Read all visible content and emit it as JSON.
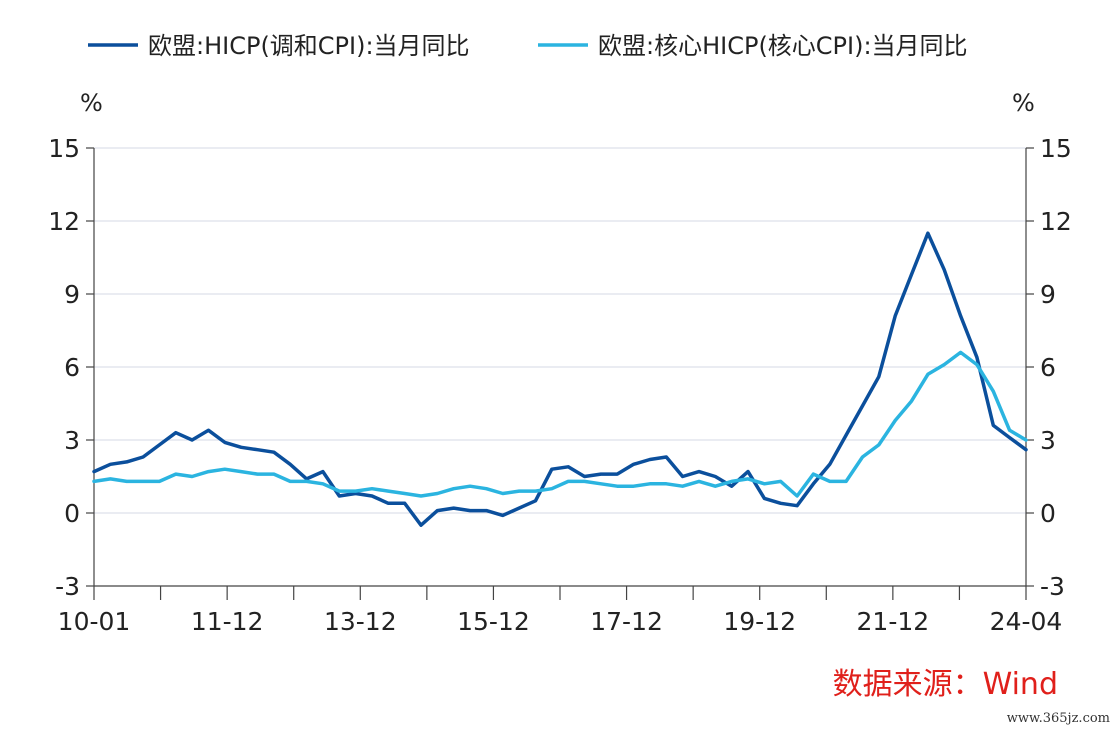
{
  "chart_data": {
    "type": "line",
    "x": [
      "2010-01",
      "2010-04",
      "2010-07",
      "2010-10",
      "2011-01",
      "2011-04",
      "2011-07",
      "2011-10",
      "2012-01",
      "2012-04",
      "2012-07",
      "2012-10",
      "2013-01",
      "2013-04",
      "2013-07",
      "2013-10",
      "2014-01",
      "2014-04",
      "2014-07",
      "2014-10",
      "2015-01",
      "2015-04",
      "2015-07",
      "2015-10",
      "2016-01",
      "2016-04",
      "2016-07",
      "2016-10",
      "2017-01",
      "2017-04",
      "2017-07",
      "2017-10",
      "2018-01",
      "2018-04",
      "2018-07",
      "2018-10",
      "2019-01",
      "2019-04",
      "2019-07",
      "2019-10",
      "2020-01",
      "2020-04",
      "2020-07",
      "2020-10",
      "2021-01",
      "2021-04",
      "2021-07",
      "2021-10",
      "2022-01",
      "2022-04",
      "2022-07",
      "2022-10",
      "2023-01",
      "2023-04",
      "2023-07",
      "2023-10",
      "2024-01",
      "2024-04"
    ],
    "series": [
      {
        "name": "欧盟:HICP(调和CPI):当月同比",
        "color": "#0b4f9c",
        "values": [
          1.7,
          2.0,
          2.1,
          2.3,
          2.8,
          3.3,
          3.0,
          3.4,
          2.9,
          2.7,
          2.6,
          2.5,
          2.0,
          1.4,
          1.7,
          0.7,
          0.8,
          0.7,
          0.4,
          0.4,
          -0.5,
          0.1,
          0.2,
          0.1,
          0.1,
          -0.1,
          0.2,
          0.5,
          1.8,
          1.9,
          1.5,
          1.6,
          1.6,
          2.0,
          2.2,
          2.3,
          1.5,
          1.7,
          1.5,
          1.1,
          1.7,
          0.6,
          0.4,
          0.3,
          1.2,
          2.0,
          3.2,
          4.4,
          5.6,
          8.1,
          9.8,
          11.5,
          10.0,
          8.1,
          6.4,
          3.6,
          3.1,
          2.6
        ]
      },
      {
        "name": "欧盟:核心HICP(核心CPI):当月同比",
        "color": "#2bb4e0",
        "values": [
          1.3,
          1.4,
          1.3,
          1.3,
          1.3,
          1.6,
          1.5,
          1.7,
          1.8,
          1.7,
          1.6,
          1.6,
          1.3,
          1.3,
          1.2,
          0.9,
          0.9,
          1.0,
          0.9,
          0.8,
          0.7,
          0.8,
          1.0,
          1.1,
          1.0,
          0.8,
          0.9,
          0.9,
          1.0,
          1.3,
          1.3,
          1.2,
          1.1,
          1.1,
          1.2,
          1.2,
          1.1,
          1.3,
          1.1,
          1.3,
          1.4,
          1.2,
          1.3,
          0.7,
          1.6,
          1.3,
          1.3,
          2.3,
          2.8,
          3.8,
          4.6,
          5.7,
          6.1,
          6.6,
          6.1,
          5.0,
          3.4,
          3.0
        ]
      }
    ],
    "x_tick_labels": [
      "10-01",
      "11-12",
      "13-12",
      "15-12",
      "17-12",
      "19-12",
      "21-12",
      "24-04"
    ],
    "y_ticks": [
      "-3",
      "0",
      "3",
      "6",
      "9",
      "12",
      "15"
    ],
    "ylim": [
      -3,
      15
    ],
    "y_unit_left": "%",
    "y_unit_right": "%",
    "grid": true,
    "legend_position": "top"
  },
  "source_label": "数据来源：Wind",
  "watermark": "www.365jz.com"
}
